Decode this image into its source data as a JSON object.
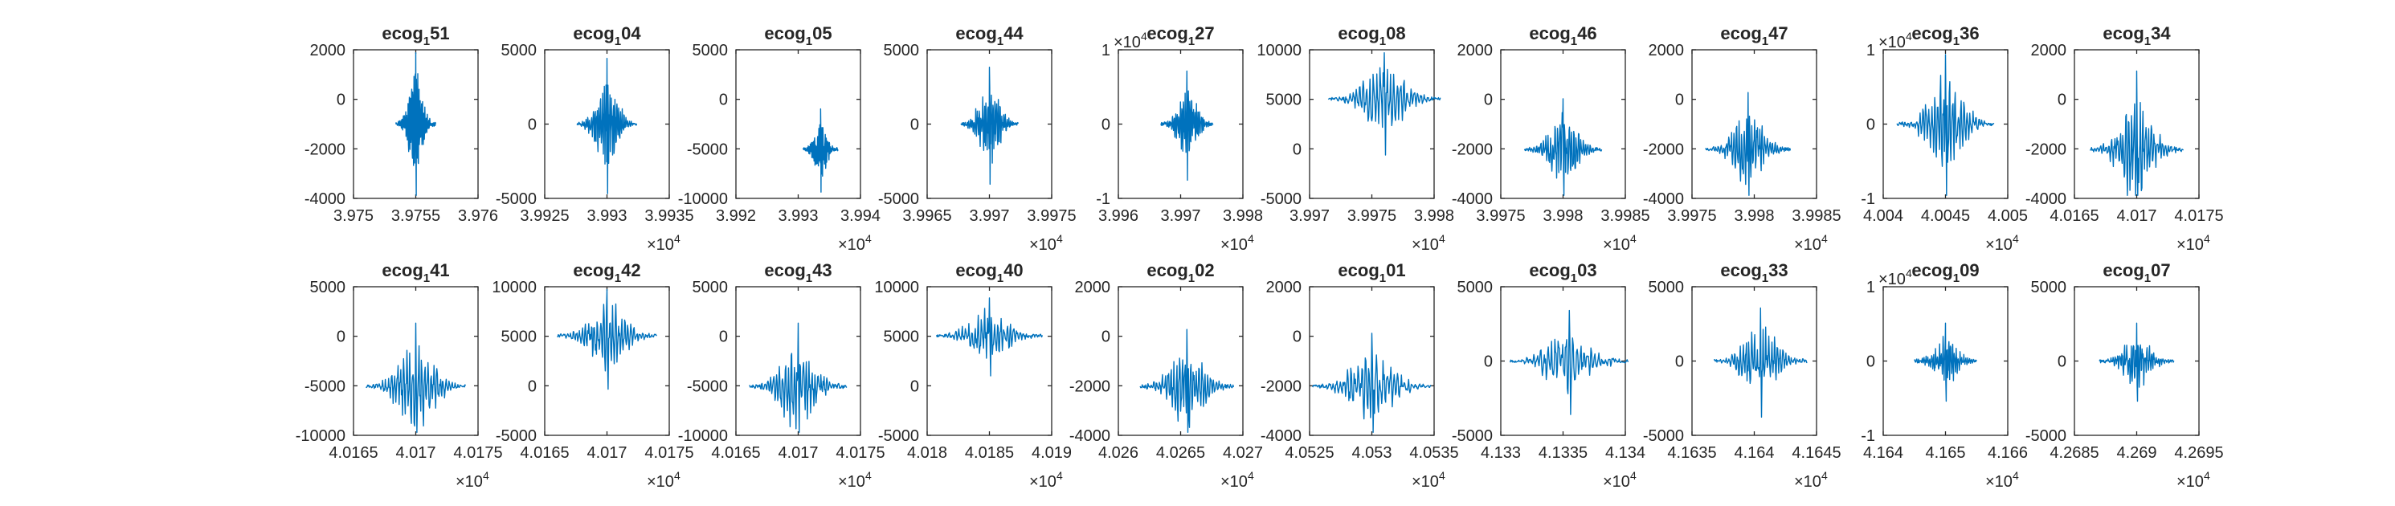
{
  "accent_color": "#0072BD",
  "chart_data": [
    {
      "type": "line",
      "title_main": "ecog",
      "title_sub": "1",
      "title_suffix": "51",
      "ylim": [
        -4000,
        2000
      ],
      "yticks": [
        "2000",
        "0",
        "-2000",
        "-4000"
      ],
      "xticks": [
        "3.975",
        "3.9755",
        "3.976"
      ],
      "x_exponent": "",
      "y_exponent": "",
      "trace": {
        "center": 0.5,
        "width": 0.32,
        "amp": 0.58,
        "baseline": 0.5,
        "seed": 1
      }
    },
    {
      "type": "line",
      "title_main": "ecog",
      "title_sub": "1",
      "title_suffix": "04",
      "ylim": [
        -5000,
        5000
      ],
      "yticks": [
        "5000",
        "0",
        "-5000"
      ],
      "xticks": [
        "3.9925",
        "3.993",
        "3.9935"
      ],
      "x_exponent": "4",
      "y_exponent": "",
      "trace": {
        "center": 0.5,
        "width": 0.48,
        "amp": 0.52,
        "baseline": 0.5,
        "seed": 2
      }
    },
    {
      "type": "line",
      "title_main": "ecog",
      "title_sub": "1",
      "title_suffix": "05",
      "ylim": [
        -10000,
        5000
      ],
      "yticks": [
        "5000",
        "0",
        "-5000",
        "-10000"
      ],
      "xticks": [
        "3.992",
        "3.993",
        "3.994"
      ],
      "x_exponent": "4",
      "y_exponent": "",
      "trace": {
        "center": 0.68,
        "width": 0.28,
        "amp": 0.32,
        "baseline": 0.33,
        "seed": 3
      }
    },
    {
      "type": "line",
      "title_main": "ecog",
      "title_sub": "1",
      "title_suffix": "44",
      "ylim": [
        -5000,
        5000
      ],
      "yticks": [
        "5000",
        "0",
        "-5000"
      ],
      "xticks": [
        "3.9965",
        "3.997",
        "3.9975"
      ],
      "x_exponent": "4",
      "y_exponent": "",
      "trace": {
        "center": 0.5,
        "width": 0.46,
        "amp": 0.45,
        "baseline": 0.5,
        "seed": 4
      }
    },
    {
      "type": "line",
      "title_main": "ecog",
      "title_sub": "1",
      "title_suffix": "27",
      "ylim": [
        -1,
        1
      ],
      "yticks": [
        "1",
        "0",
        "-1"
      ],
      "xticks": [
        "3.996",
        "3.997",
        "3.998"
      ],
      "x_exponent": "4",
      "y_exponent": "4",
      "trace": {
        "center": 0.55,
        "width": 0.42,
        "amp": 0.42,
        "baseline": 0.5,
        "seed": 5
      }
    },
    {
      "type": "line",
      "title_main": "ecog",
      "title_sub": "1",
      "title_suffix": "08",
      "ylim": [
        -5000,
        10000
      ],
      "yticks": [
        "10000",
        "5000",
        "0",
        "-5000"
      ],
      "xticks": [
        "3.997",
        "3.9975",
        "3.998"
      ],
      "x_exponent": "4",
      "y_exponent": "",
      "trace": {
        "center": 0.6,
        "width": 0.9,
        "amp": 0.42,
        "baseline": 0.67,
        "seed": 6
      }
    },
    {
      "type": "line",
      "title_main": "ecog",
      "title_sub": "1",
      "title_suffix": "46",
      "ylim": [
        -4000,
        2000
      ],
      "yticks": [
        "2000",
        "0",
        "-2000",
        "-4000"
      ],
      "xticks": [
        "3.9975",
        "3.998",
        "3.9985"
      ],
      "x_exponent": "4",
      "y_exponent": "",
      "trace": {
        "center": 0.5,
        "width": 0.62,
        "amp": 0.4,
        "baseline": 0.33,
        "seed": 7
      }
    },
    {
      "type": "line",
      "title_main": "ecog",
      "title_sub": "1",
      "title_suffix": "47",
      "ylim": [
        -4000,
        2000
      ],
      "yticks": [
        "2000",
        "0",
        "-2000",
        "-4000"
      ],
      "xticks": [
        "3.9975",
        "3.998",
        "3.9985"
      ],
      "x_exponent": "4",
      "y_exponent": "",
      "trace": {
        "center": 0.45,
        "width": 0.68,
        "amp": 0.45,
        "baseline": 0.33,
        "seed": 8
      }
    },
    {
      "type": "line",
      "title_main": "ecog",
      "title_sub": "1",
      "title_suffix": "36",
      "ylim": [
        -1,
        1
      ],
      "yticks": [
        "1",
        "0",
        "-1"
      ],
      "xticks": [
        "4.004",
        "4.0045",
        "4.005"
      ],
      "x_exponent": "4",
      "y_exponent": "4",
      "trace": {
        "center": 0.5,
        "width": 0.78,
        "amp": 0.55,
        "baseline": 0.5,
        "seed": 9
      }
    },
    {
      "type": "line",
      "title_main": "ecog",
      "title_sub": "1",
      "title_suffix": "34",
      "ylim": [
        -4000,
        2000
      ],
      "yticks": [
        "2000",
        "0",
        "-2000",
        "-4000"
      ],
      "xticks": [
        "4.0165",
        "4.017",
        "4.0175"
      ],
      "x_exponent": "4",
      "y_exponent": "",
      "trace": {
        "center": 0.5,
        "width": 0.75,
        "amp": 0.62,
        "baseline": 0.33,
        "seed": 10
      }
    },
    {
      "type": "line",
      "title_main": "ecog",
      "title_sub": "1",
      "title_suffix": "41",
      "ylim": [
        -10000,
        5000
      ],
      "yticks": [
        "5000",
        "0",
        "-5000",
        "-10000"
      ],
      "xticks": [
        "4.0165",
        "4.017",
        "4.0175"
      ],
      "x_exponent": "4",
      "y_exponent": "",
      "trace": {
        "center": 0.5,
        "width": 0.8,
        "amp": 0.5,
        "baseline": 0.33,
        "seed": 11
      }
    },
    {
      "type": "line",
      "title_main": "ecog",
      "title_sub": "1",
      "title_suffix": "42",
      "ylim": [
        -5000,
        10000
      ],
      "yticks": [
        "10000",
        "5000",
        "0",
        "-5000"
      ],
      "xticks": [
        "4.0165",
        "4.017",
        "4.0175"
      ],
      "x_exponent": "4",
      "y_exponent": "",
      "trace": {
        "center": 0.5,
        "width": 0.8,
        "amp": 0.4,
        "baseline": 0.67,
        "seed": 12
      }
    },
    {
      "type": "line",
      "title_main": "ecog",
      "title_sub": "1",
      "title_suffix": "43",
      "ylim": [
        -10000,
        5000
      ],
      "yticks": [
        "5000",
        "0",
        "-5000",
        "-10000"
      ],
      "xticks": [
        "4.0165",
        "4.017",
        "4.0175"
      ],
      "x_exponent": "4",
      "y_exponent": "",
      "trace": {
        "center": 0.5,
        "width": 0.78,
        "amp": 0.5,
        "baseline": 0.33,
        "seed": 13
      }
    },
    {
      "type": "line",
      "title_main": "ecog",
      "title_sub": "1",
      "title_suffix": "40",
      "ylim": [
        -5000,
        10000
      ],
      "yticks": [
        "10000",
        "5000",
        "0",
        "-5000"
      ],
      "xticks": [
        "4.018",
        "4.0185",
        "4.019"
      ],
      "x_exponent": "4",
      "y_exponent": "",
      "trace": {
        "center": 0.5,
        "width": 0.85,
        "amp": 0.3,
        "baseline": 0.67,
        "seed": 14
      }
    },
    {
      "type": "line",
      "title_main": "ecog",
      "title_sub": "1",
      "title_suffix": "02",
      "ylim": [
        -4000,
        2000
      ],
      "yticks": [
        "2000",
        "0",
        "-2000",
        "-4000"
      ],
      "xticks": [
        "4.026",
        "4.0265",
        "4.027"
      ],
      "x_exponent": "4",
      "y_exponent": "",
      "trace": {
        "center": 0.55,
        "width": 0.75,
        "amp": 0.45,
        "baseline": 0.33,
        "seed": 15
      }
    },
    {
      "type": "line",
      "title_main": "ecog",
      "title_sub": "1",
      "title_suffix": "01",
      "ylim": [
        -4000,
        2000
      ],
      "yticks": [
        "2000",
        "0",
        "-2000",
        "-4000"
      ],
      "xticks": [
        "4.0525",
        "4.053",
        "4.0535"
      ],
      "x_exponent": "4",
      "y_exponent": "",
      "trace": {
        "center": 0.5,
        "width": 0.95,
        "amp": 0.42,
        "baseline": 0.33,
        "seed": 16
      }
    },
    {
      "type": "line",
      "title_main": "ecog",
      "title_sub": "1",
      "title_suffix": "03",
      "ylim": [
        -5000,
        5000
      ],
      "yticks": [
        "5000",
        "0",
        "-5000"
      ],
      "xticks": [
        "4.133",
        "4.1335",
        "4.134"
      ],
      "x_exponent": "4",
      "y_exponent": "",
      "trace": {
        "center": 0.55,
        "width": 0.95,
        "amp": 0.4,
        "baseline": 0.5,
        "seed": 17
      }
    },
    {
      "type": "line",
      "title_main": "ecog",
      "title_sub": "1",
      "title_suffix": "33",
      "ylim": [
        -5000,
        5000
      ],
      "yticks": [
        "5000",
        "0",
        "-5000"
      ],
      "xticks": [
        "4.1635",
        "4.164",
        "4.1645"
      ],
      "x_exponent": "4",
      "y_exponent": "",
      "trace": {
        "center": 0.55,
        "width": 0.75,
        "amp": 0.42,
        "baseline": 0.5,
        "seed": 18
      }
    },
    {
      "type": "line",
      "title_main": "ecog",
      "title_sub": "1",
      "title_suffix": "09",
      "ylim": [
        -1,
        1
      ],
      "yticks": [
        "1",
        "0",
        "-1"
      ],
      "xticks": [
        "4.164",
        "4.165",
        "4.166"
      ],
      "x_exponent": "4",
      "y_exponent": "4",
      "trace": {
        "center": 0.5,
        "width": 0.5,
        "amp": 0.3,
        "baseline": 0.5,
        "seed": 19
      }
    },
    {
      "type": "line",
      "title_main": "ecog",
      "title_sub": "1",
      "title_suffix": "07",
      "ylim": [
        -5000,
        5000
      ],
      "yticks": [
        "5000",
        "0",
        "-5000"
      ],
      "xticks": [
        "4.2685",
        "4.269",
        "4.2695"
      ],
      "x_exponent": "4",
      "y_exponent": "",
      "trace": {
        "center": 0.5,
        "width": 0.6,
        "amp": 0.3,
        "baseline": 0.5,
        "seed": 20
      }
    }
  ]
}
